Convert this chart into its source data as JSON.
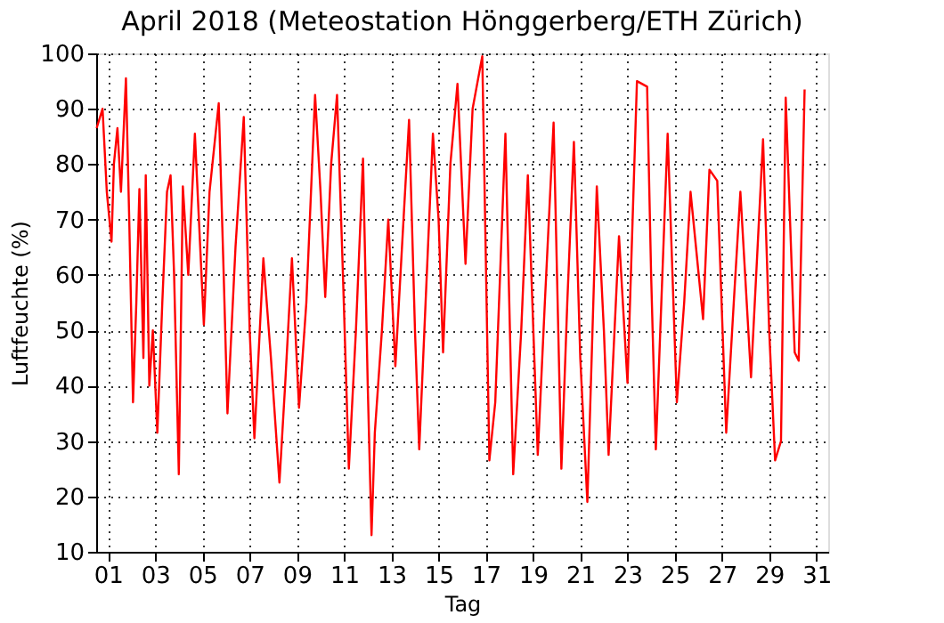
{
  "chart_data": {
    "type": "line",
    "title": "April 2018  (Meteostation Hönggerberg/ETH Zürich)",
    "xlabel": "Tag",
    "ylabel": "Luftfeuchte (%)",
    "xlim": [
      0.5,
      31.5
    ],
    "ylim": [
      10,
      100
    ],
    "xticks": [
      {
        "value": 1,
        "label": "01"
      },
      {
        "value": 3,
        "label": "03"
      },
      {
        "value": 5,
        "label": "05"
      },
      {
        "value": 7,
        "label": "07"
      },
      {
        "value": 9,
        "label": "09"
      },
      {
        "value": 11,
        "label": "11"
      },
      {
        "value": 13,
        "label": "13"
      },
      {
        "value": 15,
        "label": "15"
      },
      {
        "value": 17,
        "label": "17"
      },
      {
        "value": 19,
        "label": "19"
      },
      {
        "value": 21,
        "label": "21"
      },
      {
        "value": 23,
        "label": "23"
      },
      {
        "value": 25,
        "label": "25"
      },
      {
        "value": 27,
        "label": "27"
      },
      {
        "value": 29,
        "label": "29"
      },
      {
        "value": 31,
        "label": "31"
      }
    ],
    "yticks": [
      10,
      20,
      30,
      40,
      50,
      60,
      70,
      80,
      90,
      100
    ],
    "grid": true,
    "marker": "none",
    "line_style": "solid",
    "series": [
      {
        "color": "#ff0000",
        "x": [
          0.52,
          0.77,
          0.95,
          1.15,
          1.25,
          1.4,
          1.55,
          1.76,
          1.9,
          2.06,
          2.2,
          2.33,
          2.5,
          2.6,
          2.75,
          2.9,
          3.09,
          3.3,
          3.5,
          3.65,
          3.8,
          4.0,
          4.17,
          4.4,
          4.68,
          4.85,
          5.06,
          5.3,
          5.69,
          5.9,
          6.06,
          6.4,
          6.75,
          7.0,
          7.2,
          7.58,
          7.9,
          8.26,
          8.5,
          8.79,
          9.09,
          9.4,
          9.77,
          10.0,
          10.2,
          10.45,
          10.7,
          10.95,
          11.2,
          11.5,
          11.8,
          12.0,
          12.16,
          12.3,
          12.6,
          12.87,
          13.17,
          13.45,
          13.75,
          14.0,
          14.18,
          14.5,
          14.76,
          15.0,
          15.19,
          15.5,
          15.8,
          16.14,
          16.44,
          16.85,
          17.15,
          17.4,
          17.83,
          18.16,
          18.5,
          18.78,
          19.2,
          19.5,
          19.87,
          20.2,
          20.45,
          20.73,
          21.0,
          21.3,
          21.7,
          22.0,
          22.2,
          22.64,
          23.0,
          23.4,
          23.83,
          24.0,
          24.2,
          24.7,
          25.09,
          25.4,
          25.67,
          26.2,
          26.47,
          26.8,
          27.18,
          27.5,
          27.78,
          28.23,
          28.74,
          29.0,
          29.25,
          29.5,
          29.7,
          30.08,
          30.25,
          30.5
        ],
        "values": [
          86.5,
          90,
          75,
          66,
          80,
          86.5,
          75,
          95.5,
          70,
          37,
          55,
          75.5,
          45,
          78,
          40,
          50,
          31.5,
          55,
          75,
          78,
          60,
          24,
          76,
          60,
          85.5,
          70,
          51,
          75,
          91,
          60,
          35,
          65,
          88.5,
          50,
          30.5,
          63,
          45,
          22.5,
          40,
          63,
          36,
          55,
          92.5,
          75,
          56,
          80,
          92.5,
          60,
          25,
          50,
          81,
          40,
          13,
          31.5,
          50,
          70,
          43.5,
          65,
          88,
          50,
          28.5,
          60,
          85.5,
          70,
          46,
          80,
          94.5,
          62,
          90,
          99.5,
          26.5,
          37,
          85.5,
          24,
          50,
          78,
          27.5,
          55,
          87.5,
          25,
          55,
          84,
          45,
          19,
          76,
          50,
          27.5,
          67,
          40.5,
          95,
          94,
          60,
          28.5,
          85.5,
          37,
          55,
          75,
          52,
          79,
          77,
          31.5,
          55,
          75,
          41.5,
          84.5,
          50,
          26.5,
          30,
          92,
          46,
          44.5,
          93.5
        ]
      }
    ]
  }
}
